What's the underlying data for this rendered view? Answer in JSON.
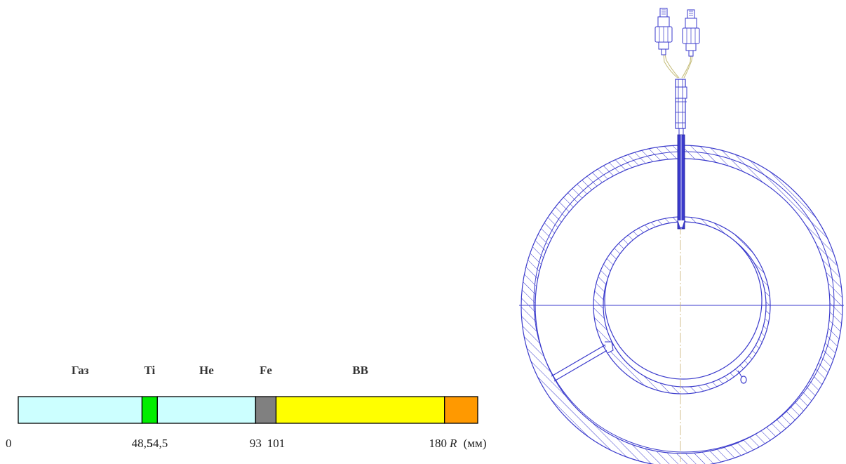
{
  "layer_bar": {
    "layers": [
      {
        "name": "Газ",
        "from": 0,
        "to": 48.5,
        "color": "#ccffff"
      },
      {
        "name": "Ti",
        "from": 48.5,
        "to": 54.5,
        "color": "#00ee00"
      },
      {
        "name": "He",
        "from": 54.5,
        "to": 93,
        "color": "#ccffff"
      },
      {
        "name": "Fe",
        "from": 93,
        "to": 101,
        "color": "#808080"
      },
      {
        "name": "ВВ",
        "from": 101,
        "to": 167,
        "color": "#ffff00"
      },
      {
        "name": "",
        "from": 167,
        "to": 180,
        "color": "#ff9900"
      }
    ],
    "ticks": [
      {
        "value": 0,
        "label": "0"
      },
      {
        "value": 48.5,
        "label": "48,5"
      },
      {
        "value": 54.5,
        "label": "54,5"
      },
      {
        "value": 93,
        "label": "93"
      },
      {
        "value": 101,
        "label": "101"
      },
      {
        "value": 180,
        "label": "180"
      }
    ],
    "axis_var": "R",
    "axis_unit": "(мм)",
    "range": [
      0,
      180
    ]
  },
  "drawing": {
    "line_color": "#3a3acc"
  }
}
